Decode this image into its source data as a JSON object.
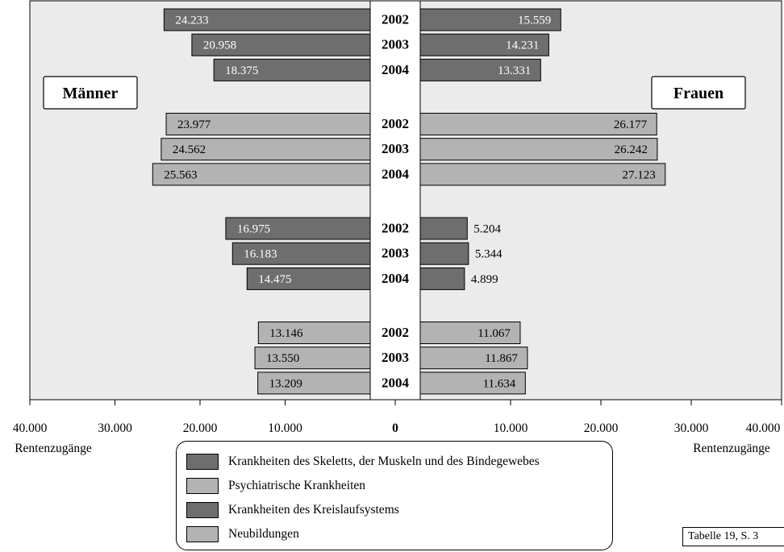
{
  "chart_data": {
    "type": "bar",
    "orientation": "horizontal-butterfly",
    "left_label": "Männer",
    "right_label": "Frauen",
    "xlim": [
      -40000,
      40000
    ],
    "x_ticks": [
      "40.000",
      "30.000",
      "20.000",
      "10.000",
      "0",
      "10.000",
      "20.000",
      "30.000",
      "40.000"
    ],
    "xlabel_left": "Rentenzugänge",
    "xlabel_right": "Rentenzugänge",
    "groups": [
      {
        "name": "Krankheiten des Skeletts, der Muskeln und des Bindegewebes",
        "color": "#6e6e6e",
        "rows": [
          {
            "year": "2002",
            "maenner": 24233,
            "maenner_label": "24.233",
            "frauen": 15559,
            "frauen_label": "15.559"
          },
          {
            "year": "2003",
            "maenner": 20958,
            "maenner_label": "20.958",
            "frauen": 14231,
            "frauen_label": "14.231"
          },
          {
            "year": "2004",
            "maenner": 18375,
            "maenner_label": "18.375",
            "frauen": 13331,
            "frauen_label": "13.331"
          }
        ]
      },
      {
        "name": "Psychiatrische Krankheiten",
        "color": "#b3b3b3",
        "rows": [
          {
            "year": "2002",
            "maenner": 23977,
            "maenner_label": "23.977",
            "frauen": 26177,
            "frauen_label": "26.177"
          },
          {
            "year": "2003",
            "maenner": 24562,
            "maenner_label": "24.562",
            "frauen": 26242,
            "frauen_label": "26.242"
          },
          {
            "year": "2004",
            "maenner": 25563,
            "maenner_label": "25.563",
            "frauen": 27123,
            "frauen_label": "27.123"
          }
        ]
      },
      {
        "name": "Krankheiten des Kreislaufsystems",
        "color": "#6e6e6e",
        "rows": [
          {
            "year": "2002",
            "maenner": 16975,
            "maenner_label": "16.975",
            "frauen": 5204,
            "frauen_label": "5.204"
          },
          {
            "year": "2003",
            "maenner": 16183,
            "maenner_label": "16.183",
            "frauen": 5344,
            "frauen_label": "5.344"
          },
          {
            "year": "2004",
            "maenner": 14475,
            "maenner_label": "14.475",
            "frauen": 4899,
            "frauen_label": "4.899"
          }
        ]
      },
      {
        "name": "Neubildungen",
        "color": "#b3b3b3",
        "rows": [
          {
            "year": "2002",
            "maenner": 13146,
            "maenner_label": "13.146",
            "frauen": 11067,
            "frauen_label": "11.067"
          },
          {
            "year": "2003",
            "maenner": 13550,
            "maenner_label": "13.550",
            "frauen": 11867,
            "frauen_label": "11.867"
          },
          {
            "year": "2004",
            "maenner": 13209,
            "maenner_label": "13.209",
            "frauen": 11634,
            "frauen_label": "11.634"
          }
        ]
      }
    ],
    "plot_background": "#ebebeb",
    "grid": false
  },
  "legend": [
    {
      "label": "Krankheiten des Skeletts, der Muskeln und des Bindegewebes",
      "color": "#6e6e6e"
    },
    {
      "label": "Psychiatrische Krankheiten",
      "color": "#b3b3b3"
    },
    {
      "label": "Krankheiten des Kreislaufsystems",
      "color": "#6e6e6e"
    },
    {
      "label": "Neubildungen",
      "color": "#b3b3b3"
    }
  ],
  "source_note": "Tabelle 19, S. 3"
}
